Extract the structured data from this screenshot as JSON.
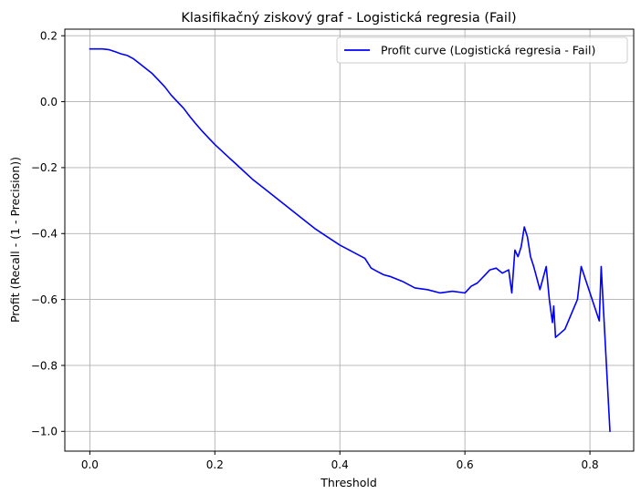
{
  "chart_data": {
    "type": "line",
    "title": "Klasifikačný ziskový graf - Logistická regresia (Fail)",
    "xlabel": "Threshold",
    "ylabel": "Profit (Recall - (1 - Precision))",
    "xlim": [
      -0.04,
      0.87
    ],
    "ylim": [
      -1.06,
      0.22
    ],
    "xticks": [
      0.0,
      0.2,
      0.4,
      0.6,
      0.8
    ],
    "xtick_labels": [
      "0.0",
      "0.2",
      "0.4",
      "0.6",
      "0.8"
    ],
    "yticks": [
      0.2,
      0.0,
      -0.2,
      -0.4,
      -0.6,
      -0.8,
      -1.0
    ],
    "ytick_labels": [
      "0.2",
      "0.0",
      "−0.2",
      "−0.4",
      "−0.6",
      "−0.8",
      "−1.0"
    ],
    "grid": true,
    "legend_position": "top-right",
    "colors": {
      "series": "#0000ff",
      "grid": "#b0b0b0"
    },
    "series": [
      {
        "name": "Profit curve (Logistická regresia - Fail)",
        "x": [
          0.0,
          0.01,
          0.02,
          0.03,
          0.04,
          0.05,
          0.06,
          0.07,
          0.08,
          0.09,
          0.1,
          0.11,
          0.12,
          0.13,
          0.14,
          0.15,
          0.16,
          0.17,
          0.18,
          0.19,
          0.2,
          0.22,
          0.24,
          0.26,
          0.28,
          0.3,
          0.32,
          0.34,
          0.36,
          0.38,
          0.4,
          0.42,
          0.44,
          0.45,
          0.46,
          0.47,
          0.48,
          0.5,
          0.52,
          0.54,
          0.56,
          0.58,
          0.6,
          0.61,
          0.62,
          0.63,
          0.64,
          0.65,
          0.66,
          0.67,
          0.675,
          0.68,
          0.685,
          0.69,
          0.695,
          0.7,
          0.705,
          0.71,
          0.72,
          0.73,
          0.735,
          0.74,
          0.742,
          0.745,
          0.76,
          0.78,
          0.786,
          0.8,
          0.815,
          0.818,
          0.832
        ],
        "values": [
          0.16,
          0.16,
          0.16,
          0.158,
          0.152,
          0.145,
          0.14,
          0.13,
          0.115,
          0.1,
          0.085,
          0.065,
          0.045,
          0.02,
          0.0,
          -0.02,
          -0.045,
          -0.068,
          -0.09,
          -0.11,
          -0.13,
          -0.165,
          -0.2,
          -0.235,
          -0.265,
          -0.295,
          -0.325,
          -0.355,
          -0.385,
          -0.41,
          -0.435,
          -0.455,
          -0.475,
          -0.505,
          -0.515,
          -0.525,
          -0.53,
          -0.545,
          -0.565,
          -0.57,
          -0.58,
          -0.575,
          -0.58,
          -0.56,
          -0.55,
          -0.53,
          -0.51,
          -0.505,
          -0.52,
          -0.51,
          -0.58,
          -0.45,
          -0.47,
          -0.44,
          -0.38,
          -0.41,
          -0.47,
          -0.5,
          -0.57,
          -0.5,
          -0.6,
          -0.67,
          -0.62,
          -0.715,
          -0.69,
          -0.6,
          -0.5,
          -0.58,
          -0.665,
          -0.5,
          -1.0
        ]
      }
    ]
  }
}
